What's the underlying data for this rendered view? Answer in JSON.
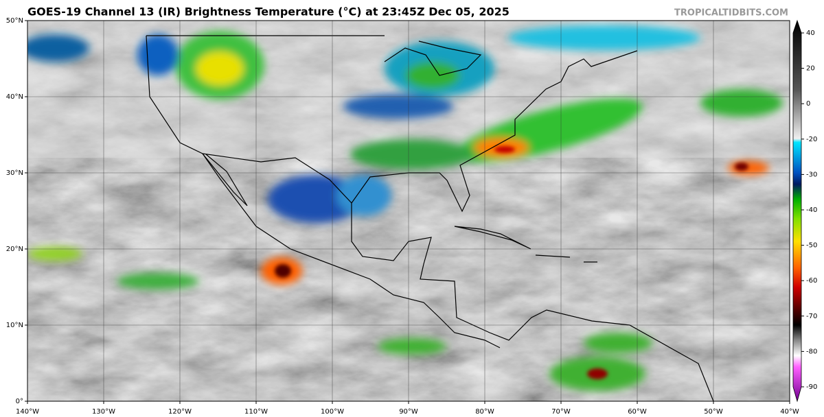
{
  "header": {
    "title": "GOES-19 Channel 13 (IR) Brightness Temperature (°C) at 23:45Z Dec 05, 2025",
    "watermark": "TROPICALTIDBITS.COM"
  },
  "map": {
    "xlim": [
      -140,
      -40
    ],
    "ylim": [
      0,
      50
    ],
    "xticks": [
      {
        "value": -140,
        "label": "140°W"
      },
      {
        "value": -130,
        "label": "130°W"
      },
      {
        "value": -120,
        "label": "120°W"
      },
      {
        "value": -110,
        "label": "110°W"
      },
      {
        "value": -100,
        "label": "100°W"
      },
      {
        "value": -90,
        "label": "90°W"
      },
      {
        "value": -80,
        "label": "80°W"
      },
      {
        "value": -70,
        "label": "70°W"
      },
      {
        "value": -60,
        "label": "60°W"
      },
      {
        "value": -50,
        "label": "50°W"
      },
      {
        "value": -40,
        "label": "40°W"
      }
    ],
    "yticks": [
      {
        "value": 0,
        "label": "0°"
      },
      {
        "value": 10,
        "label": "10°N"
      },
      {
        "value": 20,
        "label": "20°N"
      },
      {
        "value": 30,
        "label": "30°N"
      },
      {
        "value": 40,
        "label": "40°N"
      },
      {
        "value": 50,
        "label": "50°N"
      }
    ]
  },
  "colorbar": {
    "ticks": [
      40,
      20,
      0,
      -20,
      -30,
      -40,
      -50,
      -60,
      -70,
      -80,
      -90
    ]
  }
}
